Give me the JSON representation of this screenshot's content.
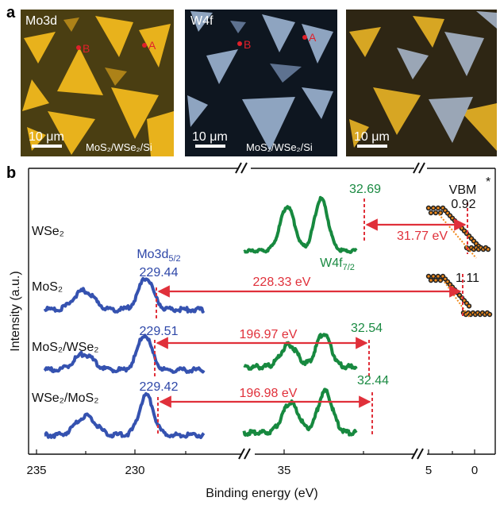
{
  "panel_a": {
    "letter": "a",
    "images": [
      {
        "label": "Mo3d",
        "scale": "10 μm",
        "substrate": "MoS₂/WSe₂/Si",
        "marker_a": "A",
        "marker_b": "B"
      },
      {
        "label": "W4f",
        "scale": "10 μm",
        "substrate": "MoS₂/WSe₂/Si",
        "marker_a": "A",
        "marker_b": "B"
      },
      {
        "label": "",
        "scale": "10 μm",
        "substrate": ""
      }
    ]
  },
  "panel_b": {
    "letter": "b",
    "ylabel": "Intensity (a.u.)",
    "xlabel": "Binding energy (eV)",
    "x_ticks": [
      "235",
      "230",
      "35",
      "5",
      "0"
    ],
    "row_labels": [
      "WSe₂",
      "MoS₂",
      "MoS₂/WSe₂",
      "WSe₂/MoS₂"
    ],
    "annotations": {
      "mo3d_label": "Mo3d",
      "mo3d_sub": "5/2",
      "w4f_label": "W4f",
      "w4f_sub": "7/2",
      "vbm": "VBM",
      "star": "*",
      "peaks": {
        "wse2_w4f": "32.69",
        "wse2_vbm": "0.92",
        "wse2_delta": "31.77 eV",
        "mos2_mo3d": "229.44",
        "mos2_vbm": "1.11",
        "mos2_delta": "228.33 eV",
        "mw_mo3d": "229.51",
        "mw_w4f": "32.54",
        "mw_delta": "196.97 eV",
        "wm_mo3d": "229.42",
        "wm_w4f": "32.44",
        "wm_delta": "196.98 eV"
      }
    },
    "colors": {
      "mo": "#3552b0",
      "w": "#17893f",
      "vbm": "#111111",
      "fit": "#f08a1c",
      "marker": "#e0202a"
    }
  },
  "chart_data": {
    "type": "line",
    "title": "",
    "xlabel": "Binding energy (eV)",
    "ylabel": "Intensity (a.u.)",
    "x_segments": [
      [
        235,
        226.5
      ],
      [
        37.5,
        30.5
      ],
      [
        5,
        0
      ]
    ],
    "series": [
      {
        "name": "WSe2 W4f",
        "peaks_eV": [
          34.8,
          32.69
        ]
      },
      {
        "name": "WSe2 VBM",
        "vbm_eV": 0.92
      },
      {
        "name": "MoS2 Mo3d",
        "peaks_eV": [
          232.6,
          229.44
        ]
      },
      {
        "name": "MoS2 VBM",
        "vbm_eV": 1.11
      },
      {
        "name": "MoS2/WSe2 Mo3d",
        "peaks_eV": [
          232.6,
          229.51
        ]
      },
      {
        "name": "MoS2/WSe2 W4f",
        "peaks_eV": [
          34.7,
          32.54
        ]
      },
      {
        "name": "WSe2/MoS2 Mo3d",
        "peaks_eV": [
          232.5,
          229.42
        ]
      },
      {
        "name": "WSe2/MoS2 W4f",
        "peaks_eV": [
          34.6,
          32.44
        ]
      }
    ],
    "energy_differences_eV": [
      31.77,
      228.33,
      196.97,
      196.98
    ]
  }
}
